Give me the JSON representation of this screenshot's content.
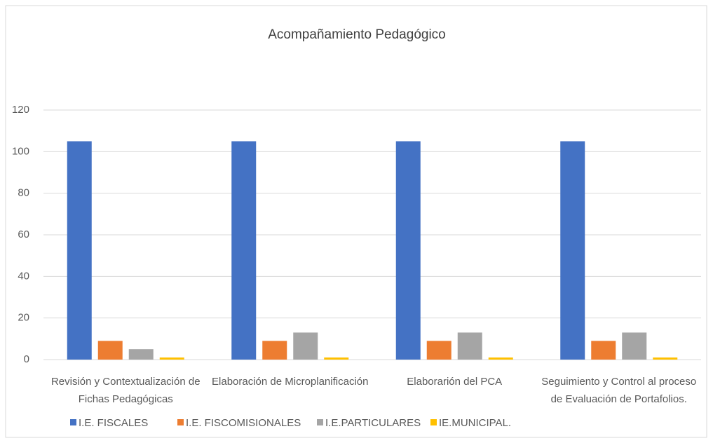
{
  "chart_data": {
    "type": "bar",
    "title": "Acompañamiento Pedagógico",
    "categories": [
      "Revisión y Contextualización de Fichas Pedagógicas",
      "Elaboración de Microplanificación",
      "Elaborarión del PCA",
      "Seguimiento y Control al proceso de Evaluación de Portafolios."
    ],
    "series": [
      {
        "name": "I.E. FISCALES",
        "color": "#4472c4",
        "values": [
          105,
          105,
          105,
          105
        ]
      },
      {
        "name": "I.E. FISCOMISIONALES",
        "color": "#ed7d31",
        "values": [
          9,
          9,
          9,
          9
        ]
      },
      {
        "name": "I.E.PARTICULARES",
        "color": "#a5a5a5",
        "values": [
          5,
          13,
          13,
          13
        ]
      },
      {
        "name": "IE.MUNICIPAL.",
        "color": "#ffc000",
        "values": [
          1,
          1,
          1,
          1
        ]
      }
    ],
    "ylim": [
      0,
      120
    ],
    "yticks": [
      0,
      20,
      40,
      60,
      80,
      100,
      120
    ],
    "grid": true,
    "legend": "bottom"
  }
}
